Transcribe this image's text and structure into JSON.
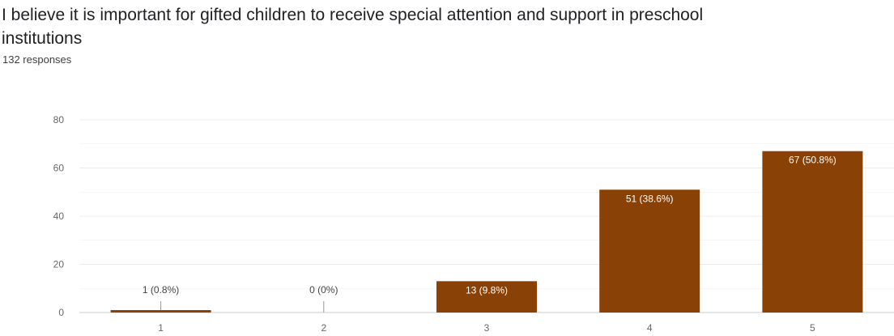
{
  "question": {
    "title": "I believe it is important for gifted children to receive special attention and support in preschool institutions",
    "responses": "132 responses"
  },
  "colors": {
    "bar": "#8a4105",
    "grid": "#ececec",
    "axis": "#cccccc",
    "tick_text": "#666666",
    "label_inside": "#ffffff",
    "label_outside": "#444444"
  },
  "chart_data": {
    "type": "bar",
    "categories": [
      "1",
      "2",
      "3",
      "4",
      "5"
    ],
    "values": [
      1,
      0,
      13,
      51,
      67
    ],
    "data_labels": [
      "1 (0.8%)",
      "0 (0%)",
      "13 (9.8%)",
      "51 (38.6%)",
      "67 (50.8%)"
    ],
    "yticks": [
      0,
      20,
      40,
      60,
      80
    ],
    "ylim": [
      0,
      80
    ],
    "grid": true,
    "title": "",
    "xlabel": "",
    "ylabel": ""
  }
}
